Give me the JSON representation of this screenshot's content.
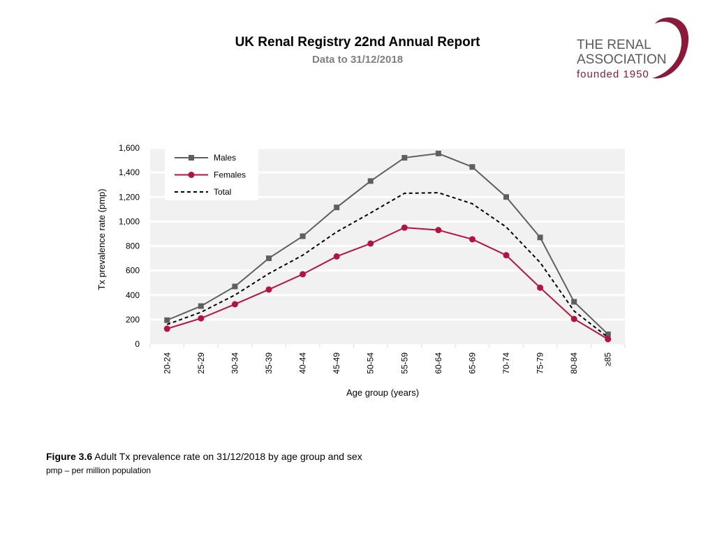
{
  "header": {
    "title": "UK Renal Registry 22nd Annual Report",
    "subtitle": "Data to 31/12/2018"
  },
  "logo": {
    "line1": "THE RENAL",
    "line2": "ASSOCIATION",
    "line3": "founded 1950",
    "color": "#8b1a3a"
  },
  "chart_data": {
    "type": "line",
    "title": "",
    "xlabel": "Age group (years)",
    "ylabel": "Tx prevalence rate (pmp)",
    "ylim": [
      0,
      1600
    ],
    "yticks": [
      0,
      200,
      400,
      600,
      800,
      1000,
      1200,
      1400,
      1600
    ],
    "ytick_labels": [
      "0",
      "200",
      "400",
      "600",
      "800",
      "1,000",
      "1,200",
      "1,400",
      "1,600"
    ],
    "categories": [
      "20-24",
      "25-29",
      "30-34",
      "35-39",
      "40-44",
      "45-49",
      "50-54",
      "55-59",
      "60-64",
      "65-69",
      "70-74",
      "75-79",
      "80-84",
      "≥85"
    ],
    "legend_position": "top-left",
    "grid": true,
    "series": [
      {
        "name": "Males",
        "marker": "square",
        "color": "#5f5f5f",
        "dashed": false,
        "values": [
          195,
          310,
          470,
          700,
          880,
          1115,
          1330,
          1520,
          1555,
          1445,
          1200,
          870,
          345,
          80
        ]
      },
      {
        "name": "Females",
        "marker": "circle",
        "color": "#b5123e",
        "dashed": false,
        "values": [
          125,
          210,
          325,
          445,
          570,
          715,
          820,
          950,
          930,
          855,
          725,
          460,
          205,
          40
        ]
      },
      {
        "name": "Total",
        "marker": "none",
        "color": "#000000",
        "dashed": true,
        "values": [
          160,
          260,
          400,
          575,
          725,
          915,
          1070,
          1230,
          1235,
          1145,
          955,
          665,
          270,
          55
        ]
      }
    ]
  },
  "caption": {
    "figure_label": "Figure 3.6",
    "text": " Adult Tx prevalence rate on 31/12/2018 by age group and sex",
    "note": "pmp – per million population"
  }
}
